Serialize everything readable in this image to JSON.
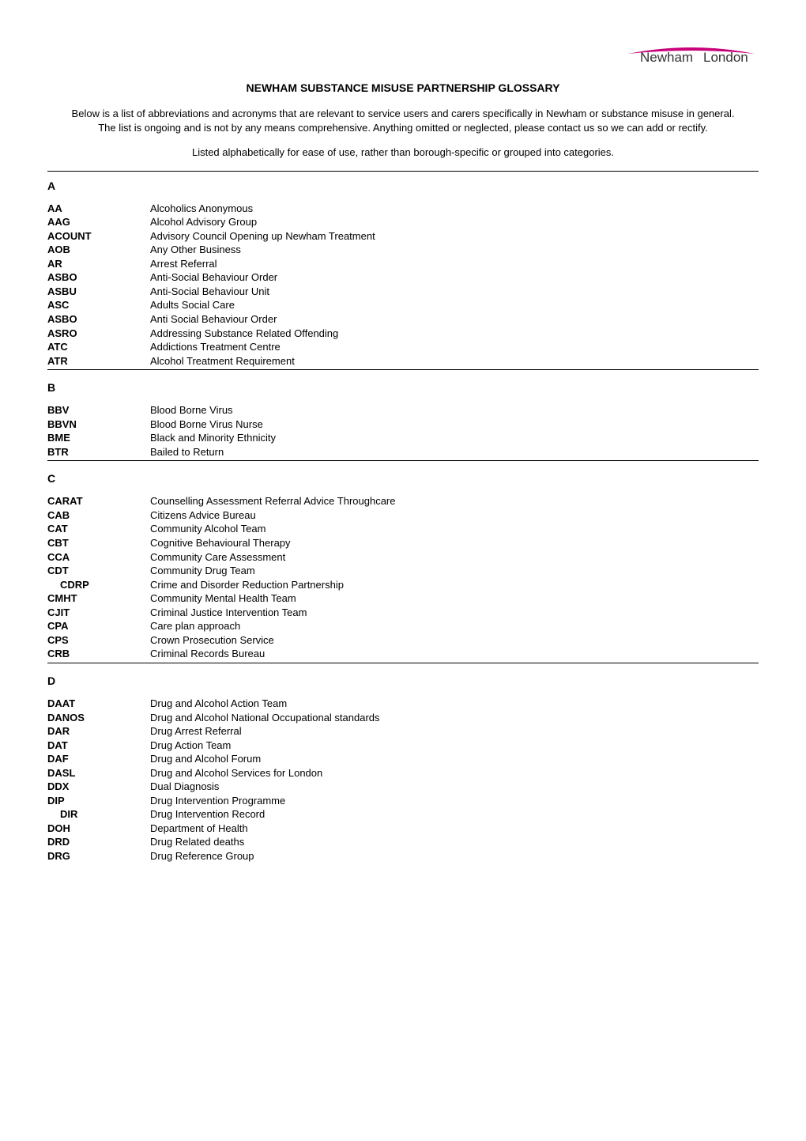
{
  "logo": {
    "text_left": "Newham",
    "text_right": "London",
    "swoosh_color": "#c8007a",
    "text_color": "#333333"
  },
  "title": "NEWHAM SUBSTANCE MISUSE PARTNERSHIP GLOSSARY",
  "intro1": "Below is a list of abbreviations and acronyms that are relevant to service users and carers specifically in Newham or substance misuse in general.  The list is ongoing and is not by any means comprehensive.  Anything omitted or neglected, please contact us so we can add or rectify.",
  "intro2": "Listed alphabetically for ease of use, rather than borough-specific or grouped into categories.",
  "sections": [
    {
      "letter": "A",
      "top_rule": true,
      "bottom_rule": true,
      "entries": [
        {
          "abbr": "AA",
          "def": "Alcoholics Anonymous"
        },
        {
          "abbr": "AAG",
          "def": "Alcohol Advisory Group"
        },
        {
          "abbr": "ACOUNT",
          "def": "Advisory Council Opening up Newham Treatment"
        },
        {
          "abbr": "AOB",
          "def": "Any Other Business"
        },
        {
          "abbr": "AR",
          "def": "Arrest Referral"
        },
        {
          "abbr": "ASBO",
          "def": "Anti-Social Behaviour Order"
        },
        {
          "abbr": "ASBU",
          "def": "Anti-Social Behaviour Unit"
        },
        {
          "abbr": "ASC",
          "def": "Adults Social Care"
        },
        {
          "abbr": "ASBO",
          "def": "Anti Social Behaviour Order"
        },
        {
          "abbr": "ASRO",
          "def": "Addressing Substance Related Offending"
        },
        {
          "abbr": "ATC",
          "def": "Addictions Treatment Centre"
        },
        {
          "abbr": "ATR",
          "def": "Alcohol Treatment Requirement"
        }
      ]
    },
    {
      "letter": "B",
      "top_rule": false,
      "bottom_rule": true,
      "entries": [
        {
          "abbr": "BBV",
          "def": "Blood Borne Virus"
        },
        {
          "abbr": "BBVN",
          "def": "Blood Borne Virus Nurse"
        },
        {
          "abbr": "BME",
          "def": "Black and Minority Ethnicity"
        },
        {
          "abbr": "BTR",
          "def": "Bailed to Return"
        }
      ]
    },
    {
      "letter": "C",
      "top_rule": false,
      "bottom_rule": true,
      "entries": [
        {
          "abbr": "CARAT",
          "def": "Counselling Assessment Referral Advice Throughcare"
        },
        {
          "abbr": "CAB",
          "def": "Citizens Advice Bureau"
        },
        {
          "abbr": "CAT",
          "def": "Community Alcohol Team"
        },
        {
          "abbr": "CBT",
          "def": "Cognitive Behavioural Therapy"
        },
        {
          "abbr": "CCA",
          "def": "Community Care Assessment"
        },
        {
          "abbr": "CDT",
          "def": "Community Drug Team"
        },
        {
          "abbr": "CDRP",
          "def": "Crime and Disorder Reduction Partnership",
          "indent": true
        },
        {
          "abbr": "CMHT",
          "def": "Community Mental Health Team"
        },
        {
          "abbr": "CJIT",
          "def": "Criminal Justice Intervention Team"
        },
        {
          "abbr": "CPA",
          "def": "Care plan approach"
        },
        {
          "abbr": "CPS",
          "def": "Crown Prosecution Service"
        },
        {
          "abbr": "CRB",
          "def": "Criminal Records Bureau"
        }
      ]
    },
    {
      "letter": "D",
      "top_rule": false,
      "bottom_rule": false,
      "entries": [
        {
          "abbr": "DAAT",
          "def": "Drug and Alcohol Action Team"
        },
        {
          "abbr": "DANOS",
          "def": "Drug and Alcohol National Occupational standards"
        },
        {
          "abbr": "DAR",
          "def": "Drug Arrest Referral"
        },
        {
          "abbr": "DAT",
          "def": "Drug Action Team"
        },
        {
          "abbr": "DAF",
          "def": "Drug and Alcohol Forum"
        },
        {
          "abbr": "DASL",
          "def": "Drug and Alcohol Services for London"
        },
        {
          "abbr": "DDX",
          "def": "Dual Diagnosis"
        },
        {
          "abbr": "DIP",
          "def": "Drug Intervention Programme"
        },
        {
          "abbr": "DIR",
          "def": "Drug Intervention Record",
          "indent": true
        },
        {
          "abbr": "DOH",
          "def": "Department of Health"
        },
        {
          "abbr": "DRD",
          "def": "Drug Related deaths"
        },
        {
          "abbr": "DRG",
          "def": "Drug Reference Group"
        }
      ]
    }
  ]
}
